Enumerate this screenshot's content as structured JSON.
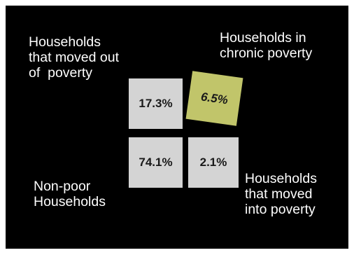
{
  "diagram": {
    "colors": {
      "background": "#000000",
      "neutral_box": "#d4d4d4",
      "highlight_box": "#c1c56a",
      "label_text": "#ffffff"
    },
    "quadrants": {
      "moved_out": {
        "label": "Households\nthat moved out\nof  poverty",
        "value": "17.3%"
      },
      "chronic": {
        "label": "Households in\nchronic poverty",
        "value": "6.5%"
      },
      "non_poor": {
        "label": "Non-poor\nHouseholds",
        "value": "74.1%"
      },
      "moved_into": {
        "label": "Households\nthat moved\ninto poverty",
        "value": "2.1%"
      }
    }
  }
}
